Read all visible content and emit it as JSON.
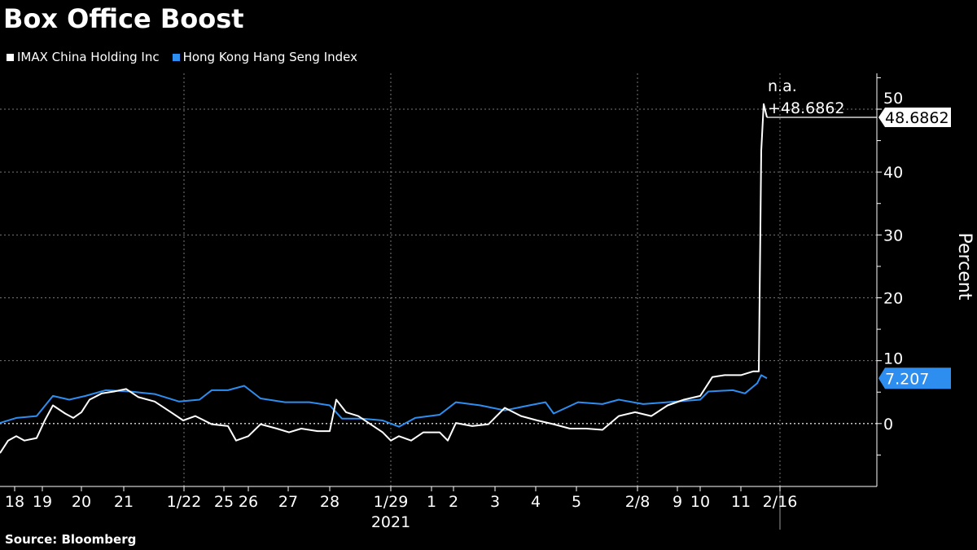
{
  "title": "Box Office Boost",
  "source": "Source: Bloomberg",
  "chart_data": {
    "type": "line",
    "title": "Box Office Boost",
    "ylabel": "Percent",
    "xlabel": "",
    "ylim": [
      -10,
      55.7
    ],
    "xlim": [
      0,
      107.7
    ],
    "yticks": [
      0,
      10,
      20,
      30,
      40,
      50
    ],
    "grid": true,
    "legend_position": "top-left",
    "x_ticks": [
      {
        "x": 1.8,
        "label": "18"
      },
      {
        "x": 5.2,
        "label": "19"
      },
      {
        "x": 10.0,
        "label": "20"
      },
      {
        "x": 15.2,
        "label": "21"
      },
      {
        "x": 22.6,
        "label": "1/22"
      },
      {
        "x": 27.5,
        "label": "25"
      },
      {
        "x": 30.5,
        "label": "26"
      },
      {
        "x": 35.4,
        "label": "27"
      },
      {
        "x": 40.5,
        "label": "28"
      },
      {
        "x": 48.0,
        "label": "1/29"
      },
      {
        "x": 53.0,
        "label": "1"
      },
      {
        "x": 55.7,
        "label": "2"
      },
      {
        "x": 60.8,
        "label": "3"
      },
      {
        "x": 65.8,
        "label": "4"
      },
      {
        "x": 70.8,
        "label": "5"
      },
      {
        "x": 78.3,
        "label": "2/8"
      },
      {
        "x": 83.2,
        "label": "9"
      },
      {
        "x": 86.0,
        "label": "10"
      },
      {
        "x": 91.0,
        "label": "11"
      },
      {
        "x": 95.8,
        "label": "2/16"
      }
    ],
    "year_label": {
      "x": 48.0,
      "label": "2021"
    },
    "vgrid_x": [
      22.6,
      48.0,
      78.3,
      95.8
    ],
    "series": [
      {
        "name": "IMAX China Holding Inc",
        "color": "#ffffff",
        "x": [
          0,
          1,
          2,
          3,
          4.5,
          5.5,
          6.5,
          8,
          9,
          10,
          11,
          12.5,
          14,
          15.5,
          17,
          19,
          21,
          22.5,
          24,
          26,
          28,
          29,
          30.5,
          32,
          34,
          35.5,
          37,
          39,
          40.5,
          41.3,
          42.5,
          44,
          45.5,
          47,
          48,
          49,
          50.5,
          52,
          54,
          55,
          56,
          58,
          60,
          62,
          64,
          66,
          68,
          70,
          72,
          74,
          76,
          78,
          80,
          82,
          84,
          86,
          87.5,
          89,
          91,
          92.5,
          93.2,
          93.5,
          93.8,
          94.2
        ],
        "y": [
          -4.7,
          -2.7,
          -2,
          -2.7,
          -2.3,
          0.5,
          2.9,
          1.6,
          0.9,
          1.8,
          3.8,
          4.8,
          5.1,
          5.5,
          4.2,
          3.5,
          1.8,
          0.5,
          1.2,
          -0.1,
          -0.4,
          -2.7,
          -2,
          -0.1,
          -0.8,
          -1.4,
          -0.8,
          -1.2,
          -1.2,
          3.8,
          1.8,
          1.2,
          -0.1,
          -1.4,
          -2.7,
          -2,
          -2.7,
          -1.4,
          -1.4,
          -2.7,
          0.1,
          -0.4,
          -0.1,
          2.5,
          1.2,
          0.5,
          -0.1,
          -0.8,
          -0.8,
          -1,
          1.2,
          1.8,
          1.2,
          2.9,
          3.8,
          4.4,
          7.4,
          7.7,
          7.7,
          8.3,
          8.3,
          43.4,
          50.8,
          48.7
        ]
      },
      {
        "name": "Hong Kong Hang Seng Index",
        "color": "#2e8ef0",
        "x": [
          0,
          2,
          4.5,
          6.5,
          8.5,
          10.5,
          13,
          16,
          19,
          22,
          24.5,
          26,
          28,
          30,
          32,
          35,
          38,
          40.5,
          42,
          44.5,
          47,
          49,
          51,
          54,
          56,
          59,
          62,
          65,
          67,
          68,
          71,
          74,
          76,
          79,
          82,
          86,
          87,
          90,
          91.5,
          93,
          93.5,
          94.2
        ],
        "y": [
          0.1,
          0.9,
          1.2,
          4.4,
          3.8,
          4.4,
          5.3,
          5.1,
          4.7,
          3.5,
          3.8,
          5.3,
          5.3,
          6,
          4,
          3.4,
          3.4,
          2.9,
          0.8,
          0.8,
          0.5,
          -0.5,
          0.9,
          1.4,
          3.4,
          2.9,
          2.1,
          2.9,
          3.4,
          1.6,
          3.4,
          3.1,
          3.8,
          3.1,
          3.4,
          3.8,
          5.1,
          5.3,
          4.8,
          6.4,
          7.7,
          7.2
        ]
      }
    ],
    "annotations": {
      "imax_na": "n.a.",
      "imax_change": "+48.6862",
      "imax_last": "48.6862",
      "hsi_last": "7.207"
    }
  }
}
